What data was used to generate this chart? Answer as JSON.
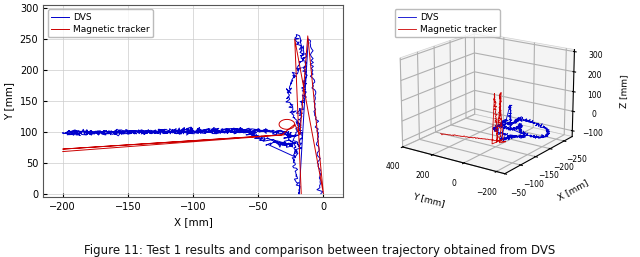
{
  "title": "Figure 11: Test 1 results and comparison between trajectory obtained from DVS",
  "left_xlabel": "X [mm]",
  "left_ylabel": "Y [mm]",
  "right_zlabel": "Z [mm]",
  "right_ylabel": "Y [mm]",
  "right_xlabel": "X [mm]",
  "dvs_color": "#0000cc",
  "mag_color": "#cc0000",
  "legend_dvs": "DVS",
  "legend_mag": "Magnetic tracker",
  "left_xlim": [
    -215,
    15
  ],
  "left_ylim": [
    -5,
    305
  ],
  "left_xticks": [
    -200,
    -150,
    -100,
    -50,
    0
  ],
  "left_yticks": [
    0,
    50,
    100,
    150,
    200,
    250,
    300
  ],
  "bg_color": "#ffffff",
  "pane_color": "#e8e8e8"
}
